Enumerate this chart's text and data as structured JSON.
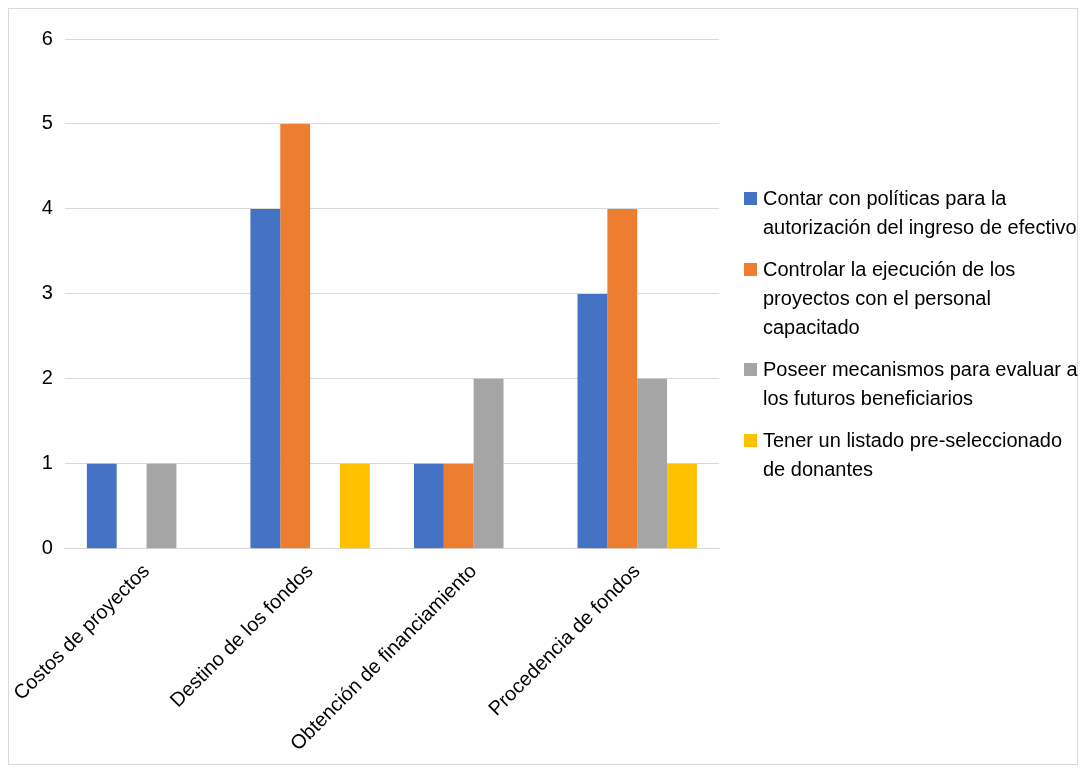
{
  "chart_data": {
    "type": "bar",
    "categories": [
      "Costos de proyectos",
      "Destino de los fondos",
      "Obtención de financiamiento",
      "Procedencia de fondos"
    ],
    "series": [
      {
        "name": "Contar con políticas para la autorización del ingreso de efectivo",
        "color": "#4472c4",
        "values": [
          1,
          4,
          1,
          3
        ]
      },
      {
        "name": "Controlar la ejecución de los proyectos con el personal capacitado",
        "color": "#ed7d31",
        "values": [
          0,
          5,
          1,
          4
        ]
      },
      {
        "name": "Poseer mecanismos para evaluar a los futuros beneficiarios",
        "color": "#a5a5a5",
        "values": [
          1,
          0,
          2,
          2
        ]
      },
      {
        "name": "Tener un listado pre-seleccionado de donantes",
        "color": "#ffc000",
        "values": [
          0,
          1,
          0,
          1
        ]
      }
    ],
    "ylim": [
      0,
      6
    ],
    "yticks": [
      0,
      1,
      2,
      3,
      4,
      5,
      6
    ],
    "grid": "y",
    "legend": "right"
  }
}
